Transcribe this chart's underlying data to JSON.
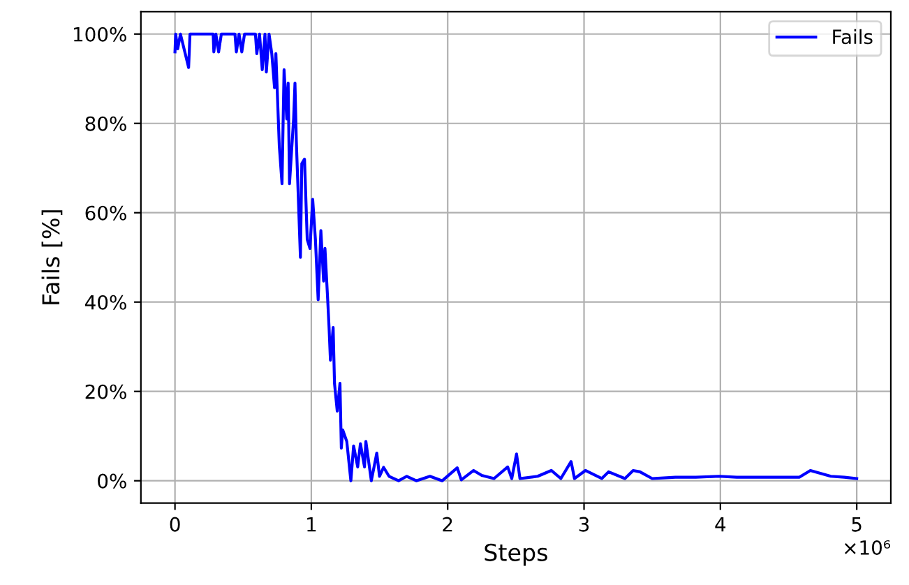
{
  "chart_data": {
    "type": "line",
    "xlabel": "Steps",
    "ylabel": "Fails [%]",
    "annotations": [
      "×10⁶"
    ],
    "xlim": [
      -0.25,
      5.25
    ],
    "xticks": [
      0,
      1,
      2,
      3,
      4,
      5
    ],
    "ylim": [
      -5,
      105
    ],
    "yticks": [
      {
        "value": 0,
        "label": "0%"
      },
      {
        "value": 20,
        "label": "20%"
      },
      {
        "value": 40,
        "label": "40%"
      },
      {
        "value": 60,
        "label": "60%"
      },
      {
        "value": 80,
        "label": "80%"
      },
      {
        "value": 100,
        "label": "100%"
      }
    ],
    "grid": true,
    "legend": "top right",
    "line_style": "solid",
    "marker": "none",
    "series": [
      {
        "name": "Fails",
        "color": "#0000ff",
        "x": [
          0,
          0.005,
          0.02,
          0.04,
          0.1,
          0.11,
          0.28,
          0.285,
          0.3,
          0.32,
          0.34,
          0.44,
          0.45,
          0.47,
          0.49,
          0.51,
          0.59,
          0.6,
          0.62,
          0.64,
          0.66,
          0.67,
          0.69,
          0.71,
          0.73,
          0.74,
          0.765,
          0.785,
          0.8,
          0.82,
          0.83,
          0.84,
          0.87,
          0.88,
          0.89,
          0.92,
          0.93,
          0.95,
          0.97,
          0.99,
          1.01,
          1.03,
          1.05,
          1.07,
          1.09,
          1.1,
          1.12,
          1.13,
          1.14,
          1.16,
          1.17,
          1.19,
          1.21,
          1.22,
          1.23,
          1.26,
          1.29,
          1.31,
          1.34,
          1.36,
          1.39,
          1.4,
          1.44,
          1.48,
          1.5,
          1.53,
          1.57,
          1.64,
          1.7,
          1.77,
          1.87,
          1.96,
          2.07,
          2.1,
          2.19,
          2.25,
          2.34,
          2.44,
          2.47,
          2.505,
          2.53,
          2.66,
          2.76,
          2.83,
          2.905,
          2.93,
          3.01,
          3.13,
          3.18,
          3.3,
          3.36,
          3.41,
          3.5,
          3.67,
          3.82,
          3.99,
          4.12,
          4.34,
          4.58,
          4.66,
          4.81,
          4.91,
          5.0
        ],
        "values": [
          96,
          100,
          96.7,
          100,
          92.5,
          100,
          100,
          96,
          100,
          96,
          100,
          100,
          96,
          100,
          96,
          100,
          100,
          95.6,
          100,
          92,
          100,
          91.5,
          100,
          95.6,
          88,
          95.6,
          75,
          66.5,
          92,
          81,
          89,
          66.5,
          81,
          89,
          76,
          50,
          71,
          72,
          54,
          52,
          63,
          54,
          40.5,
          56,
          44.7,
          52,
          40.5,
          34.3,
          27,
          34.3,
          21.8,
          15.6,
          21.8,
          7.3,
          11.4,
          8.8,
          0,
          7.8,
          3.1,
          8.3,
          3.1,
          8.8,
          0,
          6.2,
          1,
          3,
          1,
          0,
          1,
          0,
          1,
          0,
          2.9,
          0.2,
          2.3,
          1.2,
          0.5,
          3.1,
          0.5,
          6,
          0.5,
          1,
          2.3,
          0.5,
          4.3,
          0.5,
          2.3,
          0.5,
          2,
          0.5,
          2.3,
          2,
          0.5,
          0.8,
          0.8,
          1,
          0.8,
          0.8,
          0.8,
          2.3,
          1,
          0.8,
          0.5
        ]
      }
    ]
  }
}
